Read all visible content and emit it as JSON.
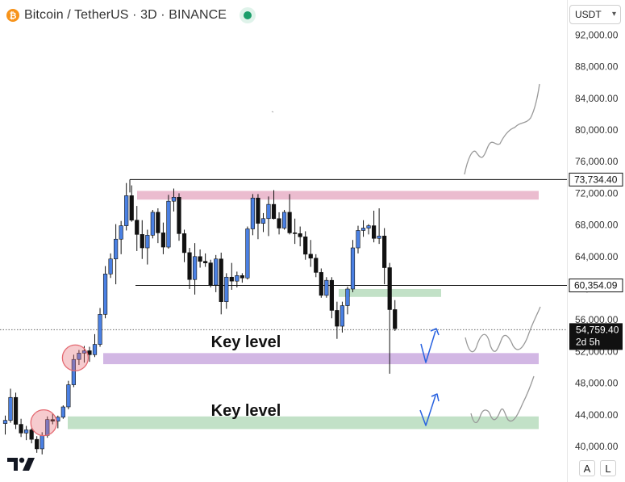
{
  "header": {
    "symbol": "Bitcoin / TetherUS · 3D · BINANCE",
    "coin_glyph": "₿",
    "coin_icon": "bitcoin-icon",
    "status_icon": "market-open-dot-icon"
  },
  "currency_select": {
    "value": "USDT"
  },
  "scale_buttons": {
    "auto": "A",
    "log": "L"
  },
  "logo": {
    "name": "tradingview-logo"
  },
  "colors": {
    "up": "#4a80e3",
    "down": "#111111",
    "pink_zone": "#eab8cc",
    "purple_zone": "#d0b3e3",
    "green_zone": "#bfdfc4",
    "arrow": "#2862e0",
    "path_sketch": "#999999",
    "circle": "#e46a72"
  },
  "chart_data": {
    "type": "candlestick",
    "ylim": [
      38000,
      93000
    ],
    "y_ticks": [
      40000,
      44000,
      48000,
      52000,
      56000,
      60000,
      64000,
      68000,
      72000,
      76000,
      80000,
      84000,
      88000,
      92000
    ],
    "y_tick_labels": [
      "40,000.00",
      "44,000.00",
      "48,000.00",
      "52,000.00",
      "56,000.00",
      "60,000.00",
      "64,000.00",
      "68,000.00",
      "72,000.00",
      "76,000.00",
      "80,000.00",
      "84,000.00",
      "88,000.00",
      "92,000.00"
    ],
    "price_labels": [
      {
        "value": 73734.4,
        "text": "73,734.40",
        "style": "black-outline"
      },
      {
        "value": 60354.09,
        "text": "60,354.09",
        "style": "black-outline"
      },
      {
        "value": 54759.4,
        "text": "54,759.40",
        "subtext": "2d 5h",
        "style": "black-fill"
      }
    ],
    "candles": [
      [
        42900,
        43900,
        41500,
        43300
      ],
      [
        43300,
        47300,
        43000,
        46200
      ],
      [
        46200,
        46800,
        42200,
        42800
      ],
      [
        42800,
        43500,
        41200,
        41700
      ],
      [
        41700,
        42600,
        40800,
        42100
      ],
      [
        42100,
        42300,
        40400,
        40900
      ],
      [
        40900,
        41300,
        39200,
        39700
      ],
      [
        39700,
        41800,
        39000,
        41400
      ],
      [
        41400,
        43800,
        41100,
        43400
      ],
      [
        43400,
        44200,
        42800,
        43200
      ],
      [
        43200,
        43900,
        42300,
        43700
      ],
      [
        43700,
        45200,
        43500,
        45000
      ],
      [
        45000,
        48300,
        44700,
        47800
      ],
      [
        47800,
        51600,
        47500,
        51000
      ],
      [
        51000,
        52200,
        50300,
        51800
      ],
      [
        51800,
        52700,
        50600,
        52100
      ],
      [
        52100,
        52600,
        50700,
        51600
      ],
      [
        51600,
        54200,
        51300,
        52900
      ],
      [
        52900,
        57500,
        52600,
        56700
      ],
      [
        56700,
        62800,
        56200,
        61800
      ],
      [
        61800,
        64400,
        61300,
        63700
      ],
      [
        63700,
        68100,
        60500,
        66200
      ],
      [
        66200,
        68500,
        64300,
        67900
      ],
      [
        67900,
        73300,
        67300,
        71700
      ],
      [
        71700,
        73000,
        68400,
        68600
      ],
      [
        68600,
        70400,
        64700,
        66800
      ],
      [
        66800,
        68600,
        63700,
        65100
      ],
      [
        65100,
        67400,
        63000,
        66700
      ],
      [
        66700,
        69900,
        66300,
        69600
      ],
      [
        69600,
        70100,
        65700,
        67000
      ],
      [
        67000,
        68300,
        64300,
        65200
      ],
      [
        65200,
        71800,
        65000,
        71000
      ],
      [
        71000,
        72600,
        69700,
        71500
      ],
      [
        71500,
        72000,
        66000,
        66900
      ],
      [
        66900,
        67400,
        63300,
        64500
      ],
      [
        64500,
        65100,
        59900,
        61100
      ],
      [
        61100,
        65700,
        59200,
        64000
      ],
      [
        64000,
        64900,
        62600,
        63400
      ],
      [
        63400,
        64400,
        62700,
        63200
      ],
      [
        63200,
        63600,
        60100,
        60400
      ],
      [
        60400,
        64200,
        59500,
        63700
      ],
      [
        63700,
        64500,
        56700,
        58300
      ],
      [
        58300,
        61900,
        57400,
        61400
      ],
      [
        61400,
        63200,
        59800,
        60900
      ],
      [
        60900,
        62100,
        60100,
        61600
      ],
      [
        61600,
        61900,
        60700,
        61300
      ],
      [
        61300,
        67800,
        61100,
        67500
      ],
      [
        67500,
        71900,
        66700,
        71400
      ],
      [
        71400,
        71900,
        66200,
        68200
      ],
      [
        68200,
        69500,
        67100,
        68800
      ],
      [
        68800,
        71600,
        66600,
        70600
      ],
      [
        70600,
        72400,
        68700,
        68800
      ],
      [
        68800,
        69600,
        66800,
        67600
      ],
      [
        67600,
        69900,
        67400,
        69600
      ],
      [
        69600,
        71900,
        66800,
        67000
      ],
      [
        67000,
        68800,
        65600,
        66900
      ],
      [
        66900,
        67800,
        65300,
        66500
      ],
      [
        66500,
        67200,
        63600,
        64300
      ],
      [
        64300,
        66100,
        62700,
        63800
      ],
      [
        63800,
        64300,
        61400,
        62000
      ],
      [
        62000,
        62500,
        58800,
        59100
      ],
      [
        59100,
        61400,
        58800,
        61000
      ],
      [
        61000,
        61400,
        56200,
        57200
      ],
      [
        57200,
        58300,
        53600,
        55200
      ],
      [
        55200,
        58300,
        54400,
        57800
      ],
      [
        57800,
        60200,
        56700,
        59900
      ],
      [
        59900,
        66100,
        59500,
        65100
      ],
      [
        65100,
        67900,
        64400,
        67300
      ],
      [
        67300,
        68600,
        66500,
        67600
      ],
      [
        67600,
        68100,
        66800,
        67900
      ],
      [
        67900,
        69800,
        65800,
        66300
      ],
      [
        66300,
        70100,
        65600,
        66600
      ],
      [
        66600,
        67600,
        60500,
        62600
      ],
      [
        62600,
        63200,
        49200,
        57300
      ],
      [
        57300,
        58500,
        54600,
        54900
      ]
    ],
    "annotations": {
      "resistance_line": {
        "value": 73734.4
      },
      "support_line": {
        "value": 60354.09
      },
      "current_price_line": {
        "value": 54759.4
      },
      "zones": [
        {
          "name": "resistance-zone",
          "from": 71200,
          "to": 72300,
          "color_key": "pink_zone"
        },
        {
          "name": "retest-zone",
          "from": 58900,
          "to": 59900,
          "color_key": "green_zone"
        },
        {
          "name": "key-level-zone-upper",
          "from": 50400,
          "to": 51800,
          "color_key": "purple_zone",
          "label": "Key level"
        },
        {
          "name": "key-level-zone-lower",
          "from": 42200,
          "to": 43800,
          "color_key": "green_zone",
          "label": "Key level"
        }
      ],
      "circles": [
        {
          "candle": 13,
          "value": 51200
        },
        {
          "candle": 7,
          "value": 43000
        }
      ]
    }
  }
}
